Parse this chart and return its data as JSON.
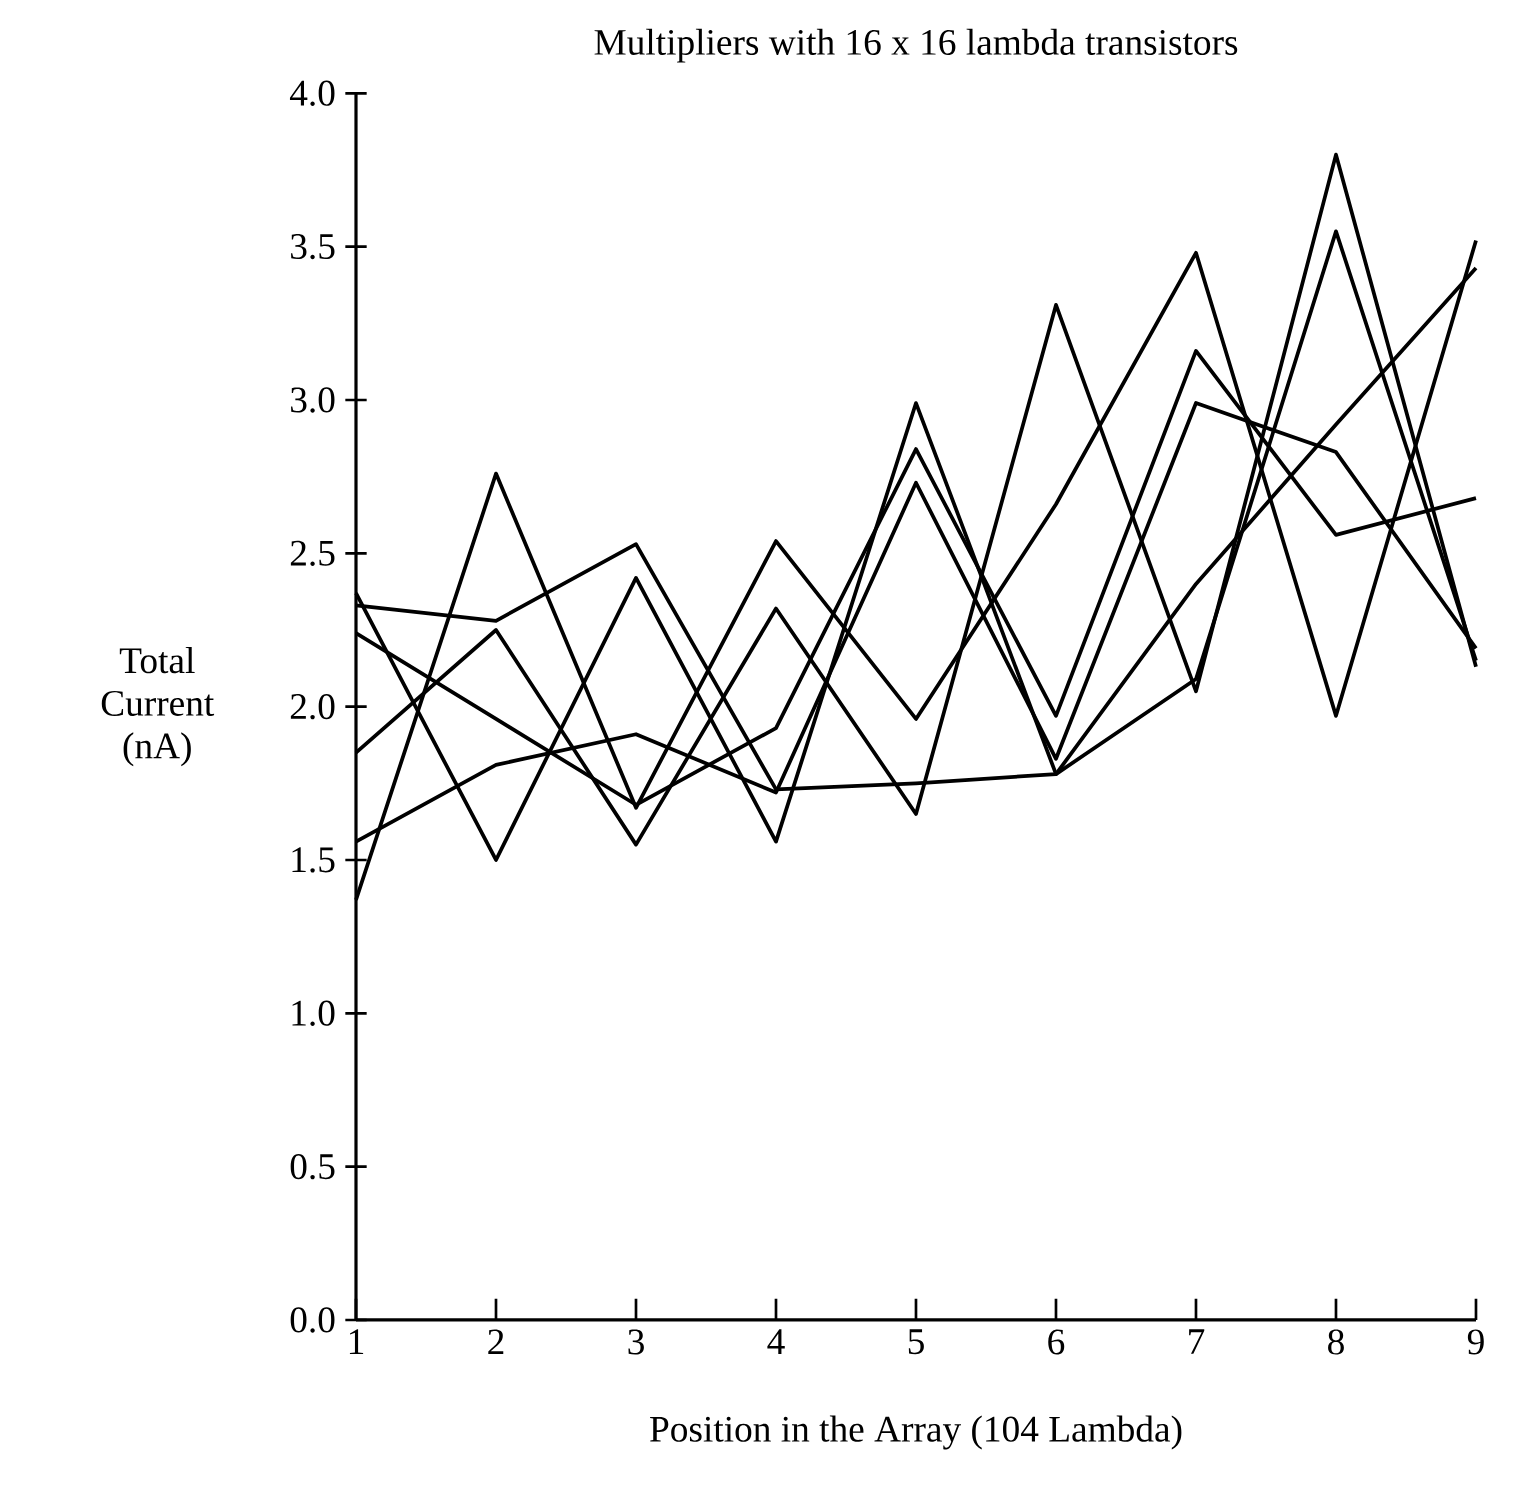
{
  "chart_data": {
    "type": "line",
    "title": "Multipliers with 16 x 16 lambda transistors",
    "xlabel": "Position in the Array (104 Lambda)",
    "ylabel": "Total Current (nA)",
    "x": [
      1,
      2,
      3,
      4,
      5,
      6,
      7,
      8,
      9
    ],
    "series": [
      {
        "color": "#000000",
        "values": [
          1.37,
          2.76,
          1.67,
          2.54,
          1.96,
          2.66,
          3.48,
          1.97,
          3.52
        ]
      },
      {
        "color": "#000000",
        "values": [
          1.85,
          2.25,
          1.55,
          2.32,
          1.65,
          3.31,
          2.05,
          3.8,
          2.13
        ]
      },
      {
        "color": "#000000",
        "values": [
          2.37,
          1.5,
          2.42,
          1.56,
          2.99,
          1.78,
          2.09,
          3.55,
          2.15
        ]
      },
      {
        "color": "#000000",
        "values": [
          2.33,
          2.28,
          2.53,
          1.73,
          1.75,
          1.78,
          2.4,
          2.92,
          3.43
        ]
      },
      {
        "color": "#000000",
        "values": [
          2.24,
          1.96,
          1.68,
          1.93,
          2.84,
          1.97,
          3.16,
          2.56,
          2.68
        ]
      },
      {
        "color": "#000000",
        "values": [
          1.56,
          1.81,
          1.91,
          1.72,
          2.73,
          1.83,
          2.99,
          2.83,
          2.19
        ]
      }
    ],
    "xlim": [
      1,
      9
    ],
    "ylim": [
      0,
      4
    ],
    "xticks": [
      1,
      2,
      3,
      4,
      5,
      6,
      7,
      8,
      9
    ],
    "yticks": [
      {
        "value": 0,
        "label": "0.0"
      },
      {
        "value": 0.5,
        "label": "0.5"
      },
      {
        "value": 1,
        "label": "1.0"
      },
      {
        "value": 1.5,
        "label": "1.5"
      },
      {
        "value": 2,
        "label": "2.0"
      },
      {
        "value": 2.5,
        "label": "2.5"
      },
      {
        "value": 3,
        "label": "3.0"
      },
      {
        "value": 3.5,
        "label": "3.5"
      },
      {
        "value": 4,
        "label": "4.0"
      }
    ],
    "marker": "none",
    "line_style": "solid"
  }
}
